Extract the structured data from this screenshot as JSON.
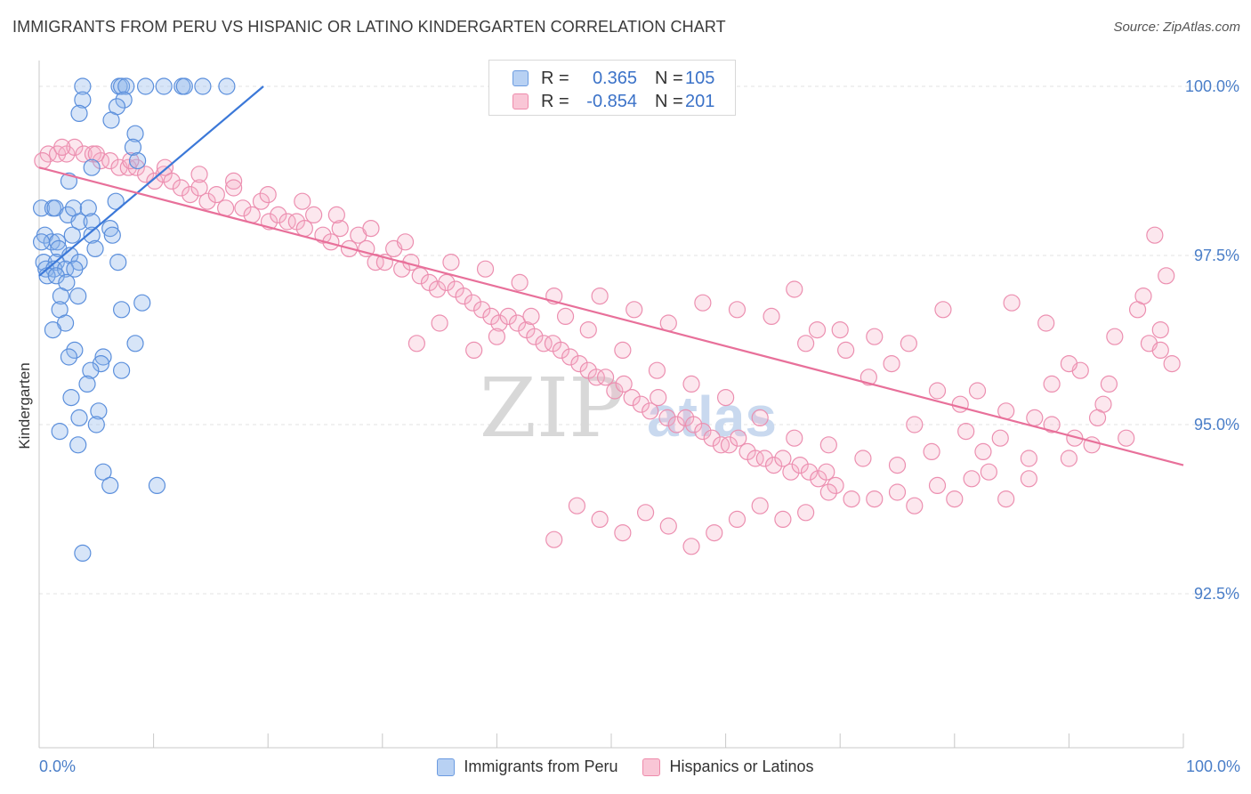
{
  "header": {
    "title": "IMMIGRANTS FROM PERU VS HISPANIC OR LATINO KINDERGARTEN CORRELATION CHART",
    "source": "Source: ZipAtlas.com"
  },
  "watermark": {
    "zip": "ZIP",
    "atlas": "atlas"
  },
  "legend": {
    "r_label": "R =",
    "n_label": "N =",
    "entries": [
      {
        "name": "Immigrants from Peru",
        "r": "0.365",
        "n": "105",
        "color": "#3b78d8"
      },
      {
        "name": "Hispanics or Latinos",
        "r": "-0.854",
        "n": "201",
        "color": "#e8709a"
      }
    ]
  },
  "chart_data": {
    "type": "scatter",
    "title": "IMMIGRANTS FROM PERU VS HISPANIC OR LATINO KINDERGARTEN CORRELATION CHART",
    "xlabel": "",
    "ylabel": "Kindergarten",
    "xlim": [
      0,
      100
    ],
    "ylim": [
      90.0,
      100.0
    ],
    "x_tick_labels": [
      "0.0%",
      "100.0%"
    ],
    "y_ticks": [
      {
        "value": 100.0,
        "label": "100.0%"
      },
      {
        "value": 97.5,
        "label": "97.5%"
      },
      {
        "value": 95.0,
        "label": "95.0%"
      },
      {
        "value": 92.5,
        "label": "92.5%"
      }
    ],
    "grid": true,
    "series": [
      {
        "name": "Immigrants from Peru",
        "color": "#3b78d8",
        "trend": {
          "x": [
            0,
            19.6
          ],
          "y": [
            97.2,
            100.0
          ]
        },
        "points": [
          [
            3.8,
            100.0
          ],
          [
            7.0,
            100.0
          ],
          [
            7.2,
            100.0
          ],
          [
            7.6,
            100.0
          ],
          [
            9.3,
            100.0
          ],
          [
            10.9,
            100.0
          ],
          [
            12.5,
            100.0
          ],
          [
            12.7,
            100.0
          ],
          [
            14.3,
            100.0
          ],
          [
            16.4,
            100.0
          ],
          [
            7.4,
            99.8
          ],
          [
            3.8,
            99.8
          ],
          [
            6.8,
            99.7
          ],
          [
            3.5,
            99.6
          ],
          [
            6.3,
            99.5
          ],
          [
            8.4,
            99.3
          ],
          [
            8.2,
            99.1
          ],
          [
            4.6,
            98.8
          ],
          [
            8.6,
            98.9
          ],
          [
            2.6,
            98.6
          ],
          [
            0.2,
            98.2
          ],
          [
            1.2,
            98.2
          ],
          [
            1.4,
            98.2
          ],
          [
            2.5,
            98.1
          ],
          [
            3.0,
            98.2
          ],
          [
            4.3,
            98.2
          ],
          [
            6.7,
            98.3
          ],
          [
            3.5,
            98.0
          ],
          [
            4.6,
            98.0
          ],
          [
            6.2,
            97.9
          ],
          [
            0.5,
            97.8
          ],
          [
            1.1,
            97.7
          ],
          [
            1.6,
            97.7
          ],
          [
            2.9,
            97.8
          ],
          [
            4.6,
            97.8
          ],
          [
            6.4,
            97.8
          ],
          [
            0.2,
            97.7
          ],
          [
            1.7,
            97.6
          ],
          [
            4.9,
            97.6
          ],
          [
            2.7,
            97.5
          ],
          [
            0.4,
            97.4
          ],
          [
            1.5,
            97.4
          ],
          [
            3.5,
            97.4
          ],
          [
            6.9,
            97.4
          ],
          [
            0.6,
            97.3
          ],
          [
            1.3,
            97.3
          ],
          [
            2.3,
            97.3
          ],
          [
            3.1,
            97.3
          ],
          [
            0.7,
            97.2
          ],
          [
            1.5,
            97.2
          ],
          [
            2.4,
            97.1
          ],
          [
            1.9,
            96.9
          ],
          [
            3.4,
            96.9
          ],
          [
            9.0,
            96.8
          ],
          [
            1.8,
            96.7
          ],
          [
            7.2,
            96.7
          ],
          [
            2.3,
            96.5
          ],
          [
            1.2,
            96.4
          ],
          [
            8.4,
            96.2
          ],
          [
            3.1,
            96.1
          ],
          [
            2.6,
            96.0
          ],
          [
            5.6,
            96.0
          ],
          [
            5.4,
            95.9
          ],
          [
            7.2,
            95.8
          ],
          [
            4.5,
            95.8
          ],
          [
            4.2,
            95.6
          ],
          [
            2.8,
            95.4
          ],
          [
            5.2,
            95.2
          ],
          [
            3.5,
            95.1
          ],
          [
            5.0,
            95.0
          ],
          [
            1.8,
            94.9
          ],
          [
            3.4,
            94.7
          ],
          [
            5.6,
            94.3
          ],
          [
            6.2,
            94.1
          ],
          [
            10.3,
            94.1
          ],
          [
            3.8,
            93.1
          ]
        ]
      },
      {
        "name": "Hispanics or Latinos",
        "color": "#e8709a",
        "trend": {
          "x": [
            0,
            100
          ],
          "y": [
            98.8,
            94.4
          ]
        },
        "points": [
          [
            0.8,
            99.0
          ],
          [
            1.6,
            99.0
          ],
          [
            2.4,
            99.0
          ],
          [
            3.1,
            99.1
          ],
          [
            3.9,
            99.0
          ],
          [
            4.7,
            99.0
          ],
          [
            5.4,
            98.9
          ],
          [
            6.2,
            98.9
          ],
          [
            7.0,
            98.8
          ],
          [
            7.8,
            98.8
          ],
          [
            8.5,
            98.8
          ],
          [
            9.3,
            98.7
          ],
          [
            10.1,
            98.6
          ],
          [
            10.9,
            98.7
          ],
          [
            11.6,
            98.6
          ],
          [
            12.4,
            98.5
          ],
          [
            13.2,
            98.4
          ],
          [
            14.0,
            98.5
          ],
          [
            14.7,
            98.3
          ],
          [
            15.5,
            98.4
          ],
          [
            16.3,
            98.2
          ],
          [
            17.0,
            98.6
          ],
          [
            17.8,
            98.2
          ],
          [
            18.6,
            98.1
          ],
          [
            19.4,
            98.3
          ],
          [
            20.1,
            98.0
          ],
          [
            20.9,
            98.1
          ],
          [
            21.7,
            98.0
          ],
          [
            22.5,
            98.0
          ],
          [
            23.2,
            97.9
          ],
          [
            24.0,
            98.1
          ],
          [
            24.8,
            97.8
          ],
          [
            25.5,
            97.7
          ],
          [
            26.3,
            97.9
          ],
          [
            27.1,
            97.6
          ],
          [
            27.9,
            97.8
          ],
          [
            28.6,
            97.6
          ],
          [
            29.4,
            97.4
          ],
          [
            30.2,
            97.4
          ],
          [
            31.0,
            97.6
          ],
          [
            31.7,
            97.3
          ],
          [
            32.5,
            97.4
          ],
          [
            33.3,
            97.2
          ],
          [
            34.1,
            97.1
          ],
          [
            34.8,
            97.0
          ],
          [
            35.6,
            97.1
          ],
          [
            36.4,
            97.0
          ],
          [
            37.1,
            96.9
          ],
          [
            37.9,
            96.8
          ],
          [
            38.7,
            96.7
          ],
          [
            39.5,
            96.6
          ],
          [
            40.2,
            96.5
          ],
          [
            41.0,
            96.6
          ],
          [
            41.8,
            96.5
          ],
          [
            42.6,
            96.4
          ],
          [
            43.3,
            96.3
          ],
          [
            44.1,
            96.2
          ],
          [
            44.9,
            96.2
          ],
          [
            45.6,
            96.1
          ],
          [
            46.4,
            96.0
          ],
          [
            47.2,
            95.9
          ],
          [
            48.0,
            95.8
          ],
          [
            48.7,
            95.7
          ],
          [
            49.5,
            95.7
          ],
          [
            50.3,
            95.5
          ],
          [
            51.1,
            95.6
          ],
          [
            51.8,
            95.4
          ],
          [
            52.6,
            95.3
          ],
          [
            53.4,
            95.2
          ],
          [
            54.1,
            95.4
          ],
          [
            54.9,
            95.1
          ],
          [
            55.7,
            95.0
          ],
          [
            56.5,
            95.1
          ],
          [
            57.2,
            95.0
          ],
          [
            58.0,
            94.9
          ],
          [
            58.8,
            94.8
          ],
          [
            59.6,
            94.7
          ],
          [
            60.3,
            94.7
          ],
          [
            61.1,
            94.8
          ],
          [
            61.9,
            94.6
          ],
          [
            62.6,
            94.5
          ],
          [
            63.4,
            94.5
          ],
          [
            64.2,
            94.4
          ],
          [
            65.0,
            94.5
          ],
          [
            65.7,
            94.3
          ],
          [
            66.5,
            94.4
          ],
          [
            67.3,
            94.3
          ],
          [
            68.1,
            94.2
          ],
          [
            68.8,
            94.3
          ],
          [
            69.6,
            94.1
          ],
          [
            33.0,
            96.2
          ],
          [
            35.0,
            96.5
          ],
          [
            38.0,
            96.1
          ],
          [
            40.0,
            96.3
          ],
          [
            43.0,
            96.6
          ],
          [
            46.0,
            96.6
          ],
          [
            49.0,
            96.9
          ],
          [
            52.0,
            96.7
          ],
          [
            55.0,
            96.5
          ],
          [
            58.0,
            96.8
          ],
          [
            61.0,
            96.7
          ],
          [
            64.0,
            96.6
          ],
          [
            67.0,
            96.2
          ],
          [
            70.0,
            96.4
          ],
          [
            73.0,
            96.3
          ],
          [
            76.0,
            96.2
          ],
          [
            79.0,
            96.7
          ],
          [
            82.0,
            95.5
          ],
          [
            85.0,
            96.8
          ],
          [
            88.0,
            96.5
          ],
          [
            91.0,
            95.8
          ],
          [
            94.0,
            96.3
          ],
          [
            97.0,
            96.2
          ],
          [
            99.0,
            95.9
          ],
          [
            98.0,
            96.1
          ],
          [
            96.0,
            96.7
          ],
          [
            93.0,
            95.3
          ],
          [
            90.0,
            95.9
          ],
          [
            87.0,
            95.1
          ],
          [
            84.0,
            94.8
          ],
          [
            81.0,
            94.9
          ],
          [
            78.0,
            94.6
          ],
          [
            75.0,
            94.4
          ],
          [
            72.0,
            94.5
          ],
          [
            69.0,
            94.7
          ],
          [
            66.0,
            94.8
          ],
          [
            63.0,
            95.1
          ],
          [
            60.0,
            95.4
          ],
          [
            57.0,
            95.6
          ],
          [
            54.0,
            95.8
          ],
          [
            51.0,
            96.1
          ],
          [
            48.0,
            96.4
          ],
          [
            45.0,
            96.9
          ],
          [
            42.0,
            97.1
          ],
          [
            39.0,
            97.3
          ],
          [
            36.0,
            97.4
          ],
          [
            32.0,
            97.7
          ],
          [
            29.0,
            97.9
          ],
          [
            26.0,
            98.1
          ],
          [
            23.0,
            98.3
          ],
          [
            20.0,
            98.4
          ],
          [
            17.0,
            98.5
          ],
          [
            14.0,
            98.7
          ],
          [
            11.0,
            98.8
          ],
          [
            8.0,
            98.9
          ],
          [
            5.0,
            99.0
          ],
          [
            2.0,
            99.1
          ],
          [
            0.3,
            98.9
          ],
          [
            98.5,
            97.2
          ],
          [
            97.5,
            97.8
          ],
          [
            96.5,
            96.9
          ],
          [
            98.0,
            96.4
          ],
          [
            95.0,
            94.8
          ],
          [
            93.5,
            95.6
          ],
          [
            92.0,
            94.7
          ],
          [
            90.0,
            94.5
          ],
          [
            88.5,
            95.6
          ],
          [
            86.5,
            94.2
          ],
          [
            84.5,
            93.9
          ],
          [
            83.0,
            94.3
          ],
          [
            81.5,
            94.2
          ],
          [
            80.0,
            93.9
          ],
          [
            78.5,
            94.1
          ],
          [
            76.5,
            93.8
          ],
          [
            75.0,
            94.0
          ],
          [
            73.0,
            93.9
          ],
          [
            71.0,
            93.9
          ],
          [
            69.0,
            94.0
          ],
          [
            67.0,
            93.7
          ],
          [
            65.0,
            93.6
          ],
          [
            63.0,
            93.8
          ],
          [
            61.0,
            93.6
          ],
          [
            59.0,
            93.4
          ],
          [
            57.0,
            93.2
          ],
          [
            55.0,
            93.5
          ],
          [
            53.0,
            93.7
          ],
          [
            51.0,
            93.4
          ],
          [
            49.0,
            93.6
          ],
          [
            47.0,
            93.8
          ],
          [
            45.0,
            93.3
          ],
          [
            66.0,
            97.0
          ],
          [
            68.0,
            96.4
          ],
          [
            70.5,
            96.1
          ],
          [
            72.5,
            95.7
          ],
          [
            74.5,
            95.9
          ],
          [
            76.5,
            95.0
          ],
          [
            78.5,
            95.5
          ],
          [
            80.5,
            95.3
          ],
          [
            82.5,
            94.6
          ],
          [
            84.5,
            95.2
          ],
          [
            86.5,
            94.5
          ],
          [
            88.5,
            95.0
          ],
          [
            90.5,
            94.8
          ],
          [
            92.5,
            95.1
          ]
        ]
      }
    ]
  }
}
